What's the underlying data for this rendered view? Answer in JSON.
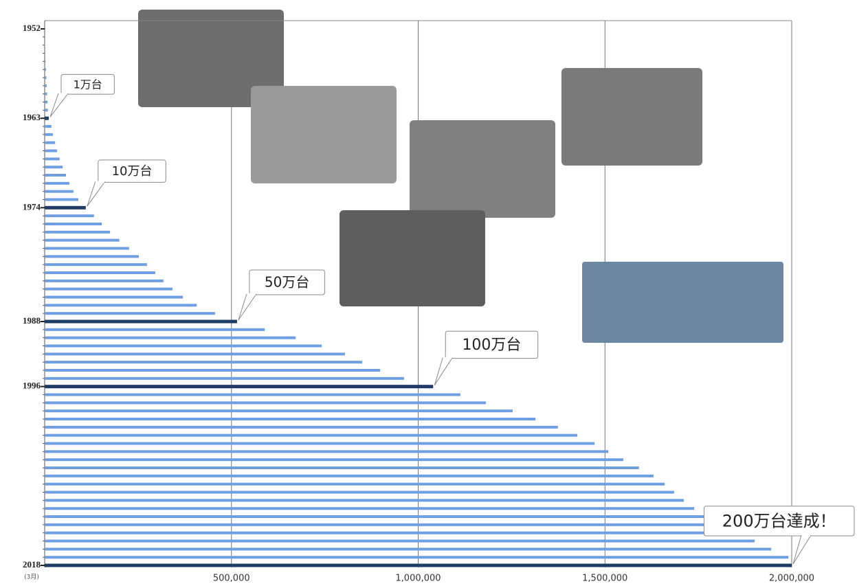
{
  "chart_data": {
    "type": "bar",
    "orientation": "horizontal",
    "categories": [
      "1952",
      null,
      null,
      null,
      null,
      null,
      null,
      null,
      null,
      null,
      null,
      "1963",
      null,
      null,
      null,
      null,
      null,
      null,
      null,
      null,
      null,
      null,
      "1974",
      null,
      null,
      null,
      null,
      null,
      null,
      null,
      null,
      null,
      null,
      null,
      null,
      null,
      "1988",
      null,
      null,
      null,
      null,
      null,
      null,
      null,
      "1996",
      null,
      null,
      null,
      null,
      null,
      null,
      null,
      null,
      null,
      null,
      null,
      null,
      null,
      null,
      null,
      null,
      null,
      null,
      null,
      null,
      null,
      "2018"
    ],
    "values": [
      0,
      300,
      800,
      1500,
      2500,
      3500,
      4500,
      5500,
      6500,
      7500,
      8500,
      11000,
      18000,
      22000,
      28000,
      33000,
      40000,
      48000,
      57000,
      66000,
      77000,
      90000,
      110000,
      132000,
      153000,
      175000,
      200000,
      226000,
      252000,
      274000,
      296000,
      318000,
      342000,
      370000,
      407000,
      456000,
      515000,
      589000,
      672000,
      742000,
      804000,
      850000,
      898000,
      962000,
      1040000,
      1113000,
      1181000,
      1253000,
      1314000,
      1374000,
      1426000,
      1472000,
      1509000,
      1549000,
      1591000,
      1630000,
      1660000,
      1685000,
      1711000,
      1739000,
      1772000,
      1812000,
      1858000,
      1901000,
      1945000,
      1991000,
      2000000
    ],
    "color": "#6e9fe2",
    "highlight_color": "#1f3c66",
    "last_category_note": "(3月)",
    "xlim": [
      0,
      2000000
    ],
    "xticks": [
      {
        "value": 500000,
        "label": "500,000"
      },
      {
        "value": 1000000,
        "label": "1,000,000"
      },
      {
        "value": 1500000,
        "label": "1,500,000"
      },
      {
        "value": 2000000,
        "label": "2,000,000"
      }
    ],
    "grid": true,
    "annotations": [
      {
        "text": "1万台",
        "at": "1963"
      },
      {
        "text": "10万台",
        "at": "1974"
      },
      {
        "text": "50万台",
        "at": "1988"
      },
      {
        "text": "100万台",
        "at": "1996"
      },
      {
        "text": "200万台達成！",
        "at": "2018"
      }
    ]
  }
}
